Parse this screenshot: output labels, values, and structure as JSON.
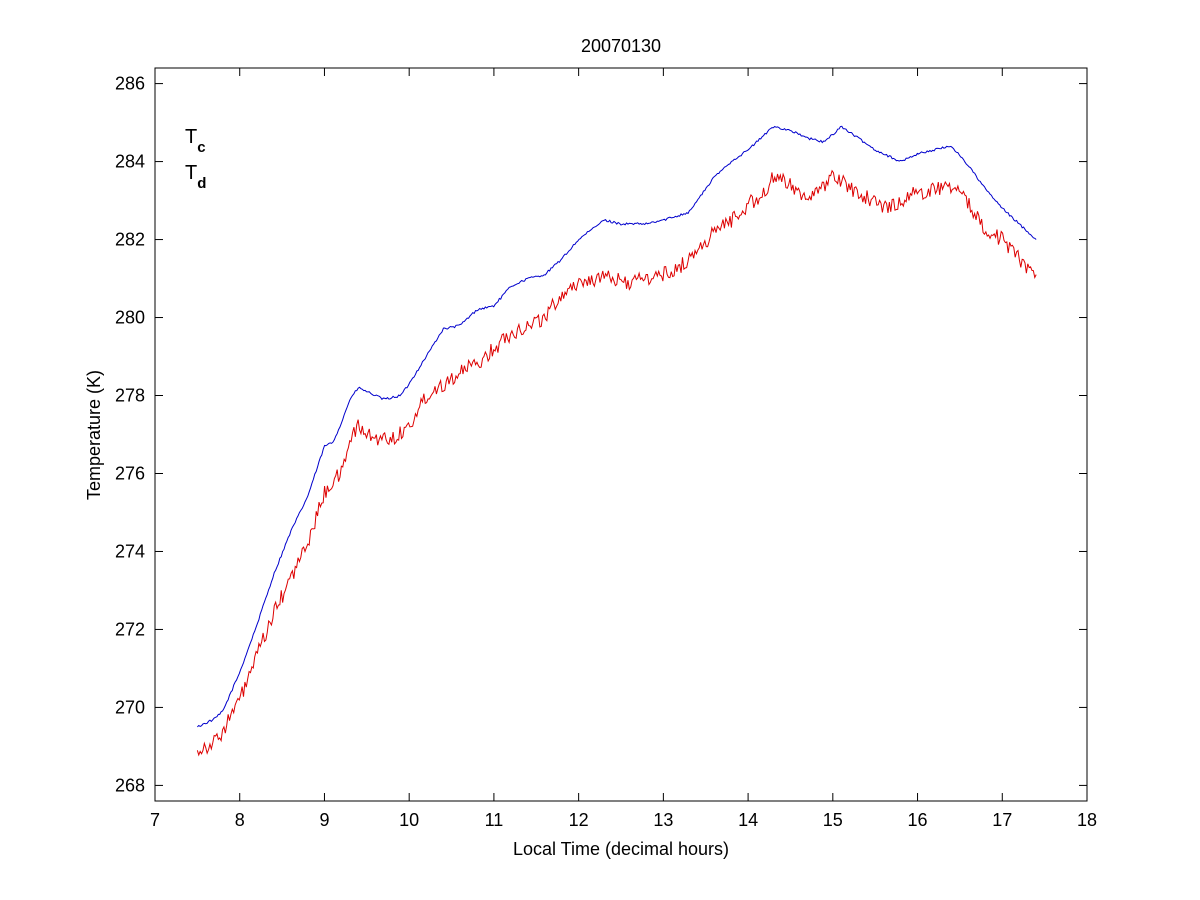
{
  "chart_data": {
    "type": "line",
    "title": "20070130",
    "xlabel": "Local Time (decimal hours)",
    "ylabel": "Temperature (K)",
    "xlim": [
      7,
      18
    ],
    "ylim": [
      267.6,
      286.4
    ],
    "xticks": [
      7,
      8,
      9,
      10,
      11,
      12,
      13,
      14,
      15,
      16,
      17,
      18
    ],
    "yticks": [
      268,
      270,
      272,
      274,
      276,
      278,
      280,
      282,
      284,
      286
    ],
    "grid": false,
    "legend_position": "top-left",
    "series": [
      {
        "name": "Tc",
        "label_main": "T",
        "label_sub": "c",
        "color": "#0000cc",
        "noise": 0.06,
        "x": [
          7.5,
          7.7,
          7.8,
          8.0,
          8.2,
          8.4,
          8.6,
          8.8,
          9.0,
          9.1,
          9.2,
          9.3,
          9.4,
          9.5,
          9.7,
          9.9,
          10.0,
          10.2,
          10.4,
          10.6,
          10.8,
          11.0,
          11.2,
          11.4,
          11.6,
          11.8,
          12.0,
          12.3,
          12.5,
          12.8,
          13.0,
          13.3,
          13.6,
          13.8,
          14.0,
          14.3,
          14.5,
          14.7,
          14.9,
          15.1,
          15.3,
          15.5,
          15.8,
          16.0,
          16.2,
          16.4,
          16.6,
          16.8,
          17.0,
          17.2,
          17.4
        ],
        "y": [
          269.5,
          269.7,
          269.9,
          270.9,
          272.1,
          273.4,
          274.5,
          275.4,
          276.7,
          276.8,
          277.3,
          277.9,
          278.2,
          278.1,
          277.9,
          278.0,
          278.3,
          279.0,
          279.7,
          279.8,
          280.2,
          280.3,
          280.8,
          281.0,
          281.1,
          281.5,
          282.0,
          282.5,
          282.4,
          282.4,
          282.5,
          282.7,
          283.6,
          284.0,
          284.3,
          284.9,
          284.8,
          284.6,
          284.5,
          284.9,
          284.6,
          284.3,
          284.0,
          284.2,
          284.3,
          284.4,
          283.9,
          283.3,
          282.8,
          282.4,
          282.0
        ]
      },
      {
        "name": "Td",
        "label_main": "T",
        "label_sub": "d",
        "color": "#dd0000",
        "noise": 0.4,
        "x": [
          7.5,
          7.6,
          7.7,
          7.8,
          8.0,
          8.2,
          8.4,
          8.6,
          8.8,
          9.0,
          9.1,
          9.2,
          9.3,
          9.4,
          9.5,
          9.6,
          9.8,
          10.0,
          10.2,
          10.4,
          10.6,
          10.8,
          11.0,
          11.2,
          11.4,
          11.6,
          11.8,
          12.0,
          12.2,
          12.4,
          12.6,
          12.8,
          13.0,
          13.2,
          13.4,
          13.6,
          13.8,
          14.0,
          14.2,
          14.3,
          14.5,
          14.7,
          14.9,
          15.0,
          15.2,
          15.4,
          15.6,
          15.8,
          16.0,
          16.2,
          16.4,
          16.6,
          16.8,
          17.0,
          17.2,
          17.4
        ],
        "y": [
          268.9,
          269.0,
          269.1,
          269.4,
          270.2,
          271.3,
          272.4,
          273.3,
          274.2,
          275.5,
          275.8,
          276.0,
          276.9,
          277.2,
          277.0,
          276.9,
          276.9,
          277.2,
          278.0,
          278.3,
          278.6,
          278.8,
          279.2,
          279.6,
          279.8,
          280.0,
          280.6,
          280.9,
          281.0,
          281.0,
          280.9,
          281.0,
          281.1,
          281.3,
          281.7,
          282.2,
          282.5,
          282.9,
          283.2,
          283.6,
          283.4,
          283.1,
          283.3,
          283.7,
          283.3,
          283.1,
          282.8,
          283.0,
          283.2,
          283.3,
          283.4,
          282.9,
          282.3,
          282.0,
          281.5,
          281.1
        ]
      }
    ]
  }
}
